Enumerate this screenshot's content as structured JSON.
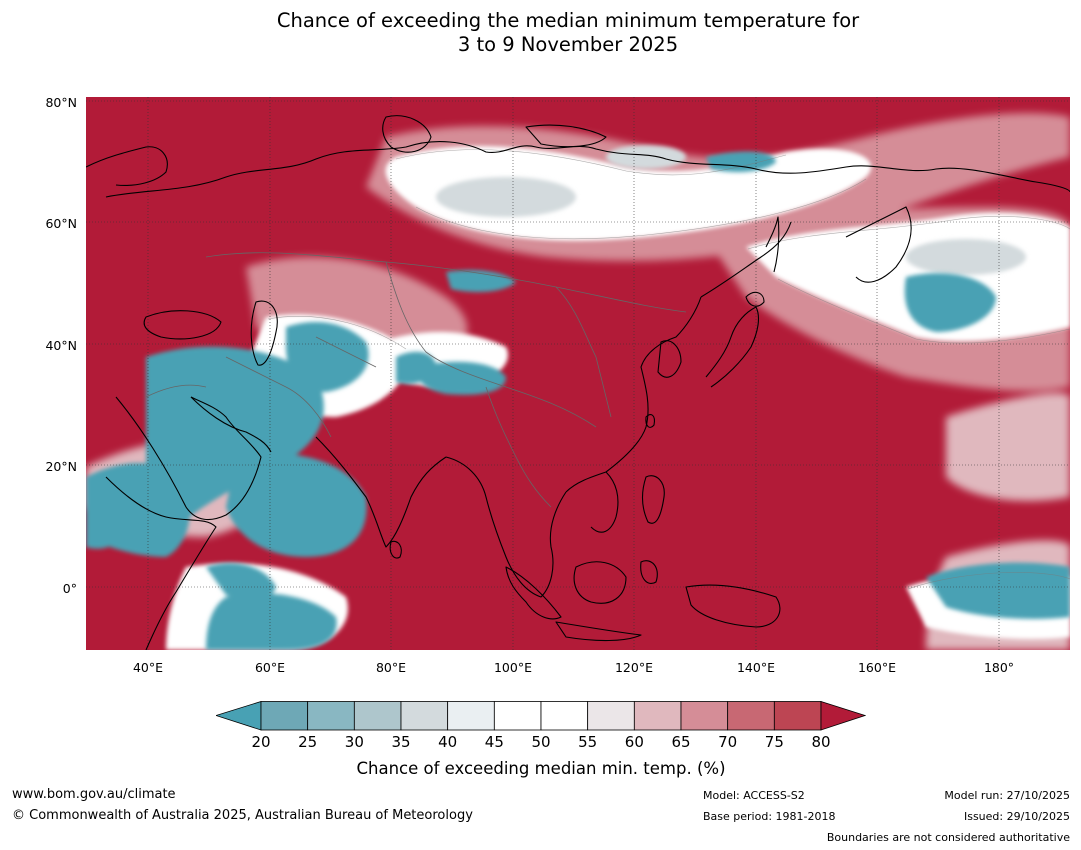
{
  "title": {
    "line1": "Chance of exceeding the median minimum temperature for",
    "line2": "3 to 9 November 2025"
  },
  "map": {
    "latitude_labels": [
      "80°N",
      "60°N",
      "40°N",
      "20°N",
      "0°"
    ],
    "longitude_labels": [
      "40°E",
      "60°E",
      "80°E",
      "100°E",
      "120°E",
      "140°E",
      "160°E",
      "180°"
    ],
    "colors": {
      "background_high": "#b21b38",
      "low": "#48a1b4",
      "neutral": "#ffffff"
    }
  },
  "legend": {
    "ticks": [
      "20",
      "25",
      "30",
      "35",
      "40",
      "45",
      "50",
      "55",
      "60",
      "65",
      "70",
      "75",
      "80"
    ],
    "colors": [
      "#48a1b4",
      "#6ea8b6",
      "#89b7c2",
      "#aec6cc",
      "#d3dadd",
      "#eaeff2",
      "#ffffff",
      "#ffffff",
      "#ebe6e8",
      "#e0b8be",
      "#d58d97",
      "#c86873",
      "#bd4553",
      "#b21b38"
    ],
    "label": "Chance of exceeding median min. temp. (%)"
  },
  "footer": {
    "url": "www.bom.gov.au/climate",
    "copyright": "© Commonwealth of Australia 2025, Australian Bureau of Meteorology",
    "model": "Model: ACCESS-S2",
    "base_period": "Base period: 1981-2018",
    "model_run": "Model run: 27/10/2025",
    "issued": "Issued: 29/10/2025",
    "disclaimer": "Boundaries are not considered authoritative"
  }
}
